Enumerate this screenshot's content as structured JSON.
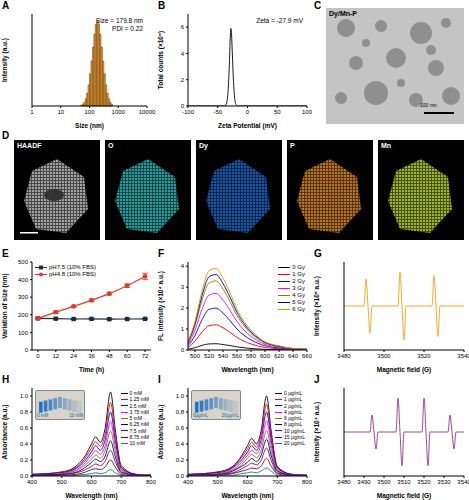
{
  "chart_data": [
    {
      "panel": "A",
      "type": "histogram",
      "x_label": "Size (nm)",
      "y_label": "Intensity (a.u.)",
      "annotations": [
        "Size = 179.8 nm",
        "PDI = 0.22"
      ],
      "bins": [
        50.1,
        56.2,
        63.1,
        70.8,
        79.4,
        89.1,
        100,
        112.2,
        125.9,
        141.3,
        158.5,
        177.8,
        199.5,
        223.9,
        251.2,
        281.8,
        316.2,
        354.8,
        398.1,
        446.7,
        501.2,
        562.3,
        631
      ],
      "counts": [
        0.1,
        0.2,
        0.4,
        0.8,
        1.4,
        2.3,
        3.5,
        4.9,
        6.4,
        7.8,
        8.9,
        9.3,
        8.9,
        7.8,
        6.4,
        4.9,
        3.5,
        2.3,
        1.4,
        0.8,
        0.4,
        0.2
      ],
      "color": "#f5a02a",
      "log": "x",
      "xlim": [
        1,
        10000
      ],
      "xticks": [
        1,
        10,
        100,
        1000,
        10000
      ],
      "ylim": [
        0,
        10
      ],
      "tick_labels": "x"
    },
    {
      "panel": "B",
      "type": "line",
      "x_label": "Zeta Potential (mV)",
      "y_label": "Total counts (×10⁵)",
      "annotations": [
        "Zeta = -27.9 mV"
      ],
      "x": [
        -100,
        -60,
        -40,
        -36,
        -34,
        -32,
        -30,
        -29,
        -28,
        -27,
        -26,
        -24,
        -22,
        -20,
        -16,
        0,
        50,
        100
      ],
      "series": [
        {
          "color": "#000000",
          "values": [
            0,
            0,
            0,
            0.1,
            0.5,
            1.6,
            3.8,
            5.2,
            5.9,
            5.6,
            4.6,
            2.3,
            0.8,
            0.2,
            0,
            0,
            0,
            0
          ]
        }
      ],
      "xlim": [
        -100,
        100
      ],
      "xticks": [
        -100,
        -50,
        0,
        50,
        100
      ],
      "ylim": [
        0,
        7
      ],
      "yticks": [
        0,
        2,
        4,
        6
      ]
    },
    {
      "panel": "E",
      "type": "line",
      "x_label": "Time (h)",
      "y_label": "Variation of size (nm)",
      "x": [
        0,
        12,
        24,
        36,
        48,
        60,
        72
      ],
      "series": [
        {
          "name": "pH7.5 (10% FBS)",
          "color": "#1f2a44",
          "marker": "square",
          "values": [
            180,
            178,
            176,
            177,
            175,
            176,
            177
          ],
          "errors": [
            3,
            3,
            3,
            3,
            3,
            3,
            3
          ]
        },
        {
          "name": "pH4.8 (10% FBS)",
          "color": "#e03a2a",
          "marker": "circle",
          "values": [
            180,
            215,
            248,
            282,
            320,
            365,
            418
          ],
          "errors": [
            4,
            6,
            6,
            8,
            8,
            10,
            18
          ]
        }
      ],
      "legend": "upper left",
      "xlim": [
        -4,
        76
      ],
      "xticks": [
        0,
        12,
        24,
        36,
        48,
        60,
        72
      ],
      "ylim": [
        0,
        500
      ],
      "yticks": [
        0,
        100,
        200,
        300,
        400,
        500
      ]
    },
    {
      "panel": "F",
      "type": "line",
      "x_label": "Wavelength (nm)",
      "y_label": "FL intensity (×10⁴ a.u.)",
      "x": [
        490,
        500,
        510,
        520,
        530,
        540,
        550,
        560,
        570,
        580,
        590,
        600,
        610,
        620,
        630,
        640,
        650,
        660
      ],
      "series": [
        {
          "name": "0 Gy",
          "color": "#000000",
          "values": [
            0.03,
            0.11,
            0.22,
            0.29,
            0.3,
            0.26,
            0.21,
            0.15,
            0.11,
            0.07,
            0.05,
            0.03,
            0.02,
            0.02,
            0.01,
            0.01,
            0,
            0
          ]
        },
        {
          "name": "1 Gy",
          "color": "#ff0000",
          "values": [
            0.12,
            0.42,
            0.86,
            1.16,
            1.2,
            1.06,
            0.84,
            0.6,
            0.42,
            0.29,
            0.19,
            0.12,
            0.08,
            0.06,
            0.04,
            0.02,
            0.02,
            0.01
          ]
        },
        {
          "name": "2 Gy",
          "color": "#0000ff",
          "values": [
            0.2,
            0.7,
            1.44,
            1.94,
            2.0,
            1.76,
            1.4,
            1.0,
            0.7,
            0.48,
            0.32,
            0.2,
            0.14,
            0.1,
            0.06,
            0.04,
            0.03,
            0.02
          ]
        },
        {
          "name": "3 Gy",
          "color": "#ff00ff",
          "values": [
            0.27,
            0.95,
            1.94,
            2.62,
            2.7,
            2.38,
            1.89,
            1.35,
            0.95,
            0.65,
            0.43,
            0.27,
            0.19,
            0.14,
            0.08,
            0.05,
            0.04,
            0.03
          ]
        },
        {
          "name": "4 Gy",
          "color": "#808000",
          "values": [
            0.33,
            1.16,
            2.38,
            3.2,
            3.3,
            2.9,
            2.31,
            1.65,
            1.16,
            0.79,
            0.53,
            0.33,
            0.23,
            0.17,
            0.1,
            0.07,
            0.05,
            0.03
          ]
        },
        {
          "name": "5 Gy",
          "color": "#000080",
          "values": [
            0.36,
            1.26,
            2.59,
            3.49,
            3.6,
            3.17,
            2.52,
            1.8,
            1.26,
            0.86,
            0.58,
            0.36,
            0.25,
            0.18,
            0.11,
            0.07,
            0.05,
            0.04
          ]
        },
        {
          "name": "6 Gy",
          "color": "#c8a000",
          "values": [
            0.39,
            1.37,
            2.81,
            3.78,
            3.9,
            3.43,
            2.73,
            1.95,
            1.37,
            0.94,
            0.62,
            0.39,
            0.27,
            0.2,
            0.12,
            0.08,
            0.06,
            0.04
          ]
        }
      ],
      "legend": "upper right",
      "xlim": [
        490,
        660
      ],
      "xticks": [
        500,
        520,
        540,
        560,
        580,
        600,
        620,
        640,
        660
      ],
      "ylim": [
        0,
        4.2
      ],
      "yticks": [
        0,
        1,
        2,
        3,
        4
      ]
    },
    {
      "panel": "G",
      "type": "line",
      "x_label": "Magnetic field (G)",
      "y_label": "Intensity (×10⁵ a.u.)",
      "x": [
        3480,
        3490,
        3491,
        3492,
        3493,
        3494,
        3507,
        3508,
        3509,
        3510,
        3511,
        3524,
        3525,
        3526,
        3527,
        3528,
        3540
      ],
      "series": [
        {
          "color": "#e8a317",
          "values": [
            0,
            0,
            0.8,
            0,
            -0.8,
            0,
            0,
            1,
            0,
            -1,
            0,
            0,
            0.9,
            0,
            -0.9,
            0,
            0
          ]
        }
      ],
      "xlim": [
        3480,
        3540
      ],
      "xticks": [
        3480,
        3500,
        3520,
        3540
      ],
      "ylim": [
        -1.3,
        1.3
      ],
      "tick_labels": "x"
    },
    {
      "panel": "H",
      "type": "line",
      "x_label": "Wavelength (nm)",
      "y_label": "Absorbance (a.u.)",
      "inset_labels": [
        "0 mM",
        "10 mM"
      ],
      "x": [
        400,
        500,
        550,
        580,
        600,
        614,
        630,
        645,
        664,
        680,
        700,
        750,
        800
      ],
      "series": [
        {
          "name": "0 mM",
          "color": "#000000",
          "values": [
            0.02,
            0.05,
            0.13,
            0.26,
            0.4,
            0.49,
            0.42,
            0.58,
            1.05,
            0.58,
            0.13,
            0.02,
            0.01
          ]
        },
        {
          "name": "1.25 mM",
          "color": "#ff0000",
          "values": [
            0.02,
            0.05,
            0.11,
            0.23,
            0.35,
            0.43,
            0.37,
            0.51,
            0.92,
            0.51,
            0.11,
            0.02,
            0.01
          ]
        },
        {
          "name": "2.5 mM",
          "color": "#0000ff",
          "values": [
            0.02,
            0.04,
            0.1,
            0.2,
            0.3,
            0.38,
            0.32,
            0.44,
            0.8,
            0.44,
            0.1,
            0.02,
            0.01
          ]
        },
        {
          "name": "3.75 mM",
          "color": "#ff00ff",
          "values": [
            0.01,
            0.03,
            0.08,
            0.17,
            0.26,
            0.32,
            0.27,
            0.37,
            0.68,
            0.37,
            0.08,
            0.01,
            0.01
          ]
        },
        {
          "name": "5 mM",
          "color": "#808000",
          "values": [
            0.01,
            0.03,
            0.07,
            0.14,
            0.21,
            0.26,
            0.22,
            0.31,
            0.56,
            0.31,
            0.07,
            0.01,
            0.01
          ]
        },
        {
          "name": "6.25 mM",
          "color": "#000080",
          "values": [
            0.01,
            0.02,
            0.05,
            0.11,
            0.17,
            0.21,
            0.18,
            0.24,
            0.44,
            0.24,
            0.05,
            0.01,
            0
          ]
        },
        {
          "name": "7.5 mM",
          "color": "#800080",
          "values": [
            0.01,
            0.02,
            0.04,
            0.08,
            0.12,
            0.15,
            0.13,
            0.18,
            0.32,
            0.18,
            0.04,
            0.01,
            0
          ]
        },
        {
          "name": "8.75 mM",
          "color": "#800000",
          "values": [
            0,
            0.01,
            0.02,
            0.05,
            0.08,
            0.09,
            0.08,
            0.11,
            0.2,
            0.11,
            0.02,
            0,
            0
          ]
        },
        {
          "name": "10 mM",
          "color": "#008080",
          "values": [
            0,
            0,
            0.01,
            0.02,
            0.03,
            0.04,
            0.03,
            0.04,
            0.08,
            0.04,
            0.01,
            0,
            0
          ]
        }
      ],
      "legend": "upper right",
      "xlim": [
        400,
        800
      ],
      "xticks": [
        400,
        500,
        600,
        700,
        800
      ],
      "ylim": [
        0,
        1.1
      ],
      "yticks": [
        {
          "value": 0,
          "label": "0.0"
        },
        0.2,
        0.4,
        0.6,
        0.8,
        {
          "value": 1,
          "label": "1.0"
        }
      ]
    },
    {
      "panel": "I",
      "type": "line",
      "x_label": "Wavelength (nm)",
      "y_label": "Absorbance (a.u.)",
      "inset_labels": [
        "0μg/mL",
        "20μg/mL"
      ],
      "x": [
        400,
        500,
        550,
        580,
        600,
        614,
        630,
        645,
        664,
        680,
        700,
        750,
        800
      ],
      "series": [
        {
          "name": "0 μg/mL",
          "color": "#000000",
          "values": [
            0.02,
            0.05,
            0.12,
            0.25,
            0.38,
            0.47,
            0.4,
            0.55,
            1.0,
            0.55,
            0.12,
            0.02,
            0.01
          ]
        },
        {
          "name": "1 μg/mL",
          "color": "#ff0000",
          "values": [
            0.02,
            0.05,
            0.11,
            0.23,
            0.34,
            0.42,
            0.36,
            0.5,
            0.9,
            0.5,
            0.11,
            0.02,
            0.01
          ]
        },
        {
          "name": "2 μg/mL",
          "color": "#0000ff",
          "values": [
            0.02,
            0.04,
            0.1,
            0.2,
            0.3,
            0.38,
            0.32,
            0.44,
            0.8,
            0.44,
            0.1,
            0.02,
            0.01
          ]
        },
        {
          "name": "4 μg/mL",
          "color": "#ff00ff",
          "values": [
            0.01,
            0.03,
            0.08,
            0.17,
            0.26,
            0.32,
            0.28,
            0.38,
            0.69,
            0.38,
            0.08,
            0.01,
            0.01
          ]
        },
        {
          "name": "6 μg/mL",
          "color": "#808000",
          "values": [
            0.01,
            0.03,
            0.07,
            0.14,
            0.22,
            0.27,
            0.23,
            0.31,
            0.57,
            0.31,
            0.07,
            0.01,
            0.01
          ]
        },
        {
          "name": "8 μg/mL",
          "color": "#000080",
          "values": [
            0.01,
            0.02,
            0.06,
            0.12,
            0.17,
            0.22,
            0.18,
            0.25,
            0.46,
            0.25,
            0.06,
            0.01,
            0
          ]
        },
        {
          "name": "10 μg/mL",
          "color": "#800080",
          "values": [
            0.01,
            0.02,
            0.04,
            0.09,
            0.13,
            0.16,
            0.14,
            0.19,
            0.35,
            0.19,
            0.04,
            0.01,
            0
          ]
        },
        {
          "name": "15 μg/mL",
          "color": "#800000",
          "values": [
            0,
            0.01,
            0.03,
            0.06,
            0.08,
            0.1,
            0.09,
            0.12,
            0.22,
            0.12,
            0.03,
            0,
            0
          ]
        },
        {
          "name": "20 μg/mL",
          "color": "#008080",
          "values": [
            0,
            0.01,
            0.01,
            0.03,
            0.04,
            0.05,
            0.04,
            0.06,
            0.1,
            0.06,
            0.01,
            0,
            0
          ]
        }
      ],
      "legend": "upper right",
      "xlim": [
        400,
        800
      ],
      "xticks": [
        400,
        500,
        600,
        700,
        800
      ],
      "ylim": [
        0,
        1.1
      ],
      "yticks": [
        {
          "value": 0,
          "label": "0.0"
        },
        0.2,
        0.4,
        0.6,
        0.8,
        {
          "value": 1,
          "label": "1.0"
        }
      ]
    },
    {
      "panel": "J",
      "type": "line",
      "x_label": "Magnetic field (G)",
      "y_label": "Intensity (×10⁴ a.u.)",
      "x": [
        3480,
        3493,
        3494,
        3495,
        3496,
        3497,
        3506,
        3507,
        3508,
        3509,
        3510,
        3519,
        3520,
        3521,
        3522,
        3523,
        3532,
        3533,
        3534,
        3535,
        3536,
        3540
      ],
      "series": [
        {
          "color": "#8b3a8b",
          "values": [
            0,
            0,
            0.5,
            0,
            -0.5,
            0,
            0,
            1,
            0,
            -1,
            0,
            0,
            1,
            0,
            -1,
            0,
            0,
            0.5,
            0,
            -0.5,
            0,
            0
          ]
        }
      ],
      "xlim": [
        3480,
        3540
      ],
      "xticks": [
        3480,
        3490,
        3500,
        3510,
        3520,
        3530,
        3540
      ],
      "ylim": [
        -1.3,
        1.3
      ],
      "tick_labels": "x"
    }
  ],
  "images": [
    {
      "panel": "C",
      "label": "Dy/Mn-P",
      "scale_bar": "100 nm"
    },
    {
      "panel": "D",
      "maps": [
        {
          "label": "HAADF",
          "color": "#cfcfcf"
        },
        {
          "label": "O",
          "color": "#33c9c9"
        },
        {
          "label": "Dy",
          "color": "#1e6fd9"
        },
        {
          "label": "P",
          "color": "#f0962a"
        },
        {
          "label": "Mn",
          "color": "#c8e632"
        }
      ]
    }
  ]
}
